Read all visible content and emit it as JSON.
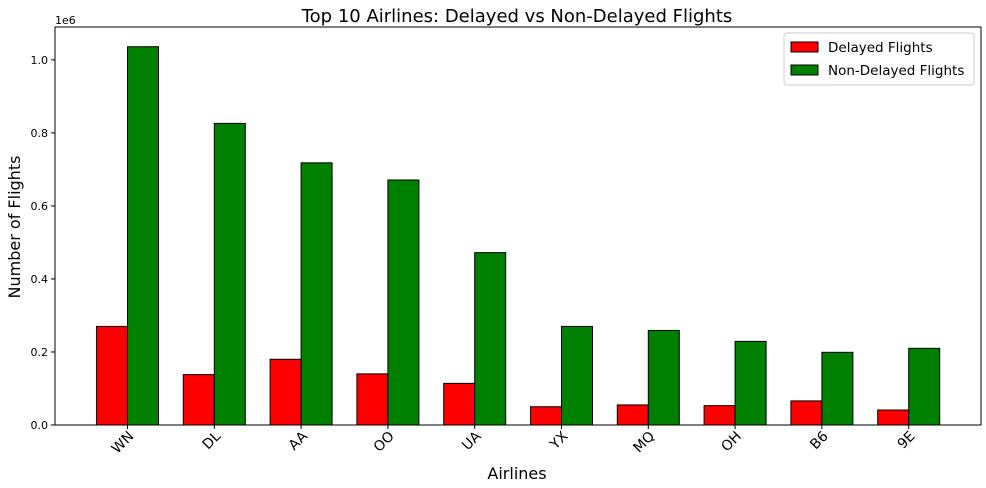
{
  "chart_data": {
    "type": "bar",
    "title": "Top 10 Airlines: Delayed vs Non-Delayed Flights",
    "xlabel": "Airlines",
    "ylabel": "Number of Flights",
    "y_multiplier_label": "1e6",
    "categories": [
      "WN",
      "DL",
      "AA",
      "OO",
      "UA",
      "YX",
      "MQ",
      "OH",
      "B6",
      "9E"
    ],
    "series": [
      {
        "name": "Delayed Flights",
        "color": "#ff0000",
        "values": [
          270000,
          138000,
          180000,
          140000,
          114000,
          50000,
          55000,
          53000,
          66000,
          41000
        ]
      },
      {
        "name": "Non-Delayed Flights",
        "color": "#008000",
        "values": [
          1036000,
          826000,
          718000,
          671000,
          472000,
          270000,
          259000,
          229000,
          199000,
          210000
        ]
      }
    ],
    "ylim": [
      0,
      1090000
    ],
    "y_ticks": [
      0,
      200000,
      400000,
      600000,
      800000,
      1000000
    ],
    "y_tick_labels": [
      "0.0",
      "0.2",
      "0.4",
      "0.6",
      "0.8",
      "1.0"
    ],
    "legend_position": "top-right",
    "grid": false
  }
}
